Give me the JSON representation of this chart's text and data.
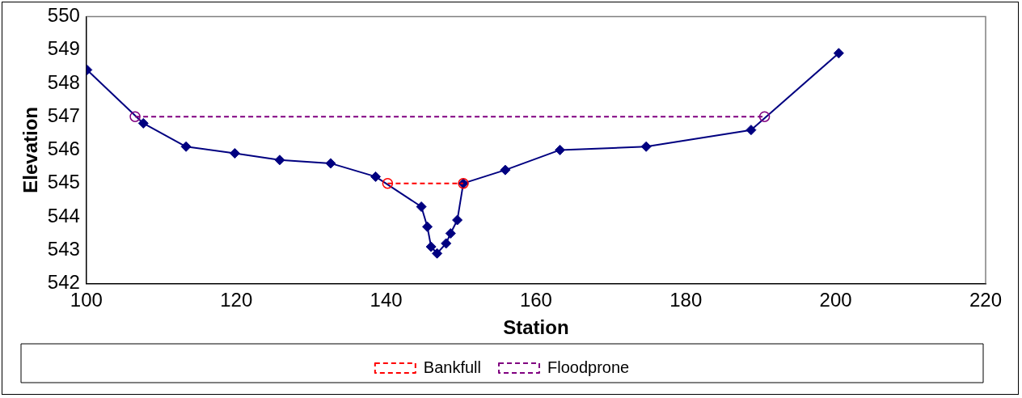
{
  "chart_data": {
    "type": "line",
    "xlabel": "Station",
    "ylabel": "Elevation",
    "xlim": [
      100,
      220
    ],
    "xticks": [
      100,
      120,
      140,
      160,
      180,
      200,
      220
    ],
    "ylim": [
      542,
      550
    ],
    "yticks": [
      542,
      543,
      544,
      545,
      546,
      547,
      548,
      549,
      550
    ],
    "grid": false,
    "legend": "bottom",
    "series": [
      {
        "color": "#000080",
        "marker": "diamond",
        "line_style": "solid",
        "x": [
          100.1,
          107.6,
          113.3,
          119.8,
          125.8,
          132.6,
          138.6,
          144.7,
          145.5,
          146.0,
          146.8,
          148.0,
          148.6,
          149.5,
          150.3,
          155.9,
          163.2,
          174.7,
          188.7,
          200.4
        ],
        "values": [
          548.4,
          546.8,
          546.1,
          545.9,
          545.7,
          545.6,
          545.2,
          544.3,
          543.7,
          543.1,
          542.9,
          543.2,
          543.5,
          543.9,
          545.0,
          545.4,
          546.0,
          546.1,
          546.6,
          548.9
        ]
      },
      {
        "name": "Bankfull",
        "color": "#ff0000",
        "marker": "circle",
        "line_style": "dashed",
        "x": [
          140.2,
          150.3
        ],
        "values": [
          545.0,
          545.0
        ]
      },
      {
        "name": "Floodprone",
        "color": "#800080",
        "marker": "circle",
        "line_style": "dashed",
        "x": [
          106.5,
          190.5
        ],
        "values": [
          547.0,
          547.0
        ]
      }
    ]
  }
}
